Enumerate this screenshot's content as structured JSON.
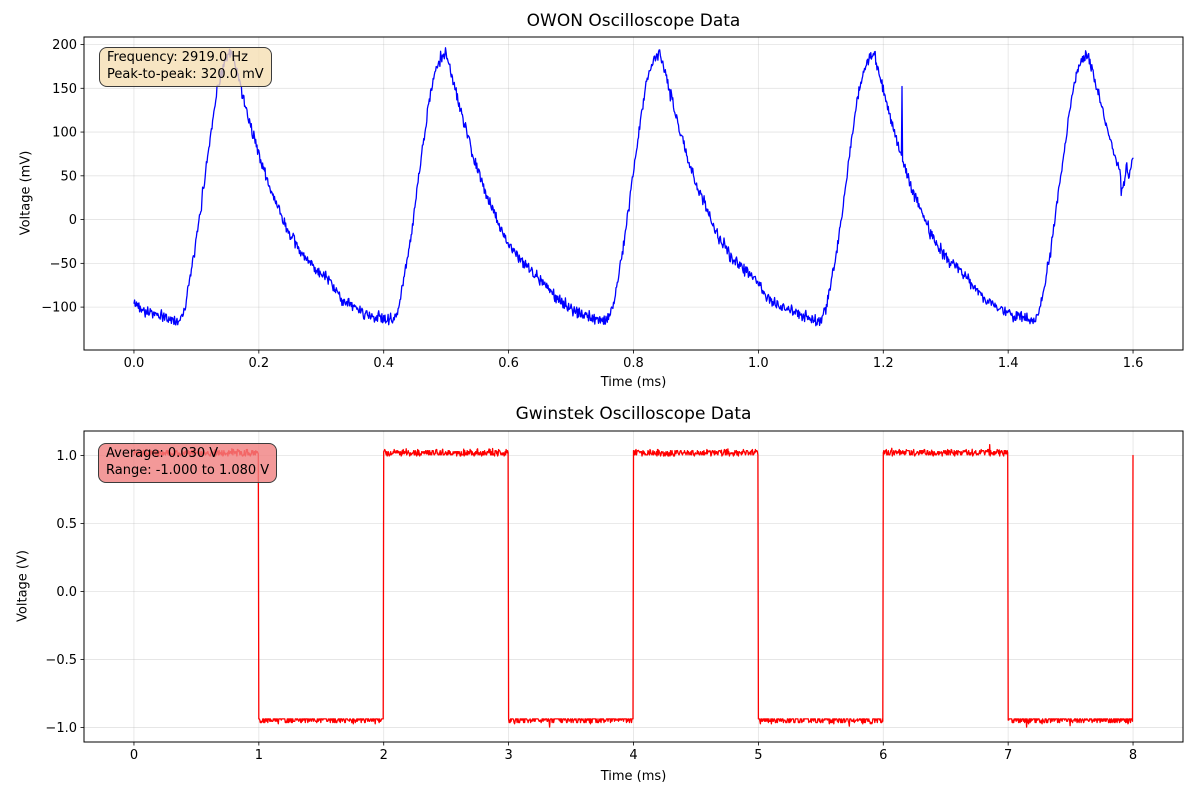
{
  "figure": {
    "background": "#ffffff"
  },
  "chart_data": [
    {
      "name": "owon",
      "type": "line",
      "title": "OWON Oscilloscope Data",
      "xlabel": "Time (ms)",
      "ylabel": "Voltage (mV)",
      "line_color": "#0000ff",
      "grid": {
        "on": true,
        "color": "#b0b0b0",
        "alpha": 0.35
      },
      "xlim": [
        -0.08,
        1.68
      ],
      "ylim": [
        -149,
        208.6
      ],
      "x_ticks": [
        {
          "v": 0.0,
          "label": "0.0"
        },
        {
          "v": 0.2,
          "label": "0.2"
        },
        {
          "v": 0.4,
          "label": "0.4"
        },
        {
          "v": 0.6,
          "label": "0.6"
        },
        {
          "v": 0.8,
          "label": "0.8"
        },
        {
          "v": 1.0,
          "label": "1.0"
        },
        {
          "v": 1.2,
          "label": "1.2"
        },
        {
          "v": 1.4,
          "label": "1.4"
        },
        {
          "v": 1.6,
          "label": "1.6"
        }
      ],
      "y_ticks": [
        {
          "v": 200,
          "label": "200"
        },
        {
          "v": 150,
          "label": "150"
        },
        {
          "v": 100,
          "label": "100"
        },
        {
          "v": 50,
          "label": "50"
        },
        {
          "v": 0,
          "label": "0"
        },
        {
          "v": -50,
          "label": "−50"
        },
        {
          "v": -100,
          "label": "−100"
        }
      ],
      "annotation": {
        "lines": [
          "Frequency: 2919.0 Hz",
          "Peak-to-peak: 320.0 mV"
        ],
        "bg": "#f5deb3",
        "border": "#3b3b3b",
        "alpha": 0.8
      },
      "stats": {
        "frequency_hz": 2919.0,
        "peak_to_peak_mv": 320.0
      },
      "waveform": {
        "kind": "periodic-peaks",
        "period_ms": 0.3426,
        "first_peak_ms": 0.157,
        "t_end_ms": 1.6,
        "n_samples": 1600,
        "peak_mv": 190,
        "trough_mv": -116,
        "noise_mv": 5,
        "cycle_anchors": [
          [
            0,
            190
          ],
          [
            0.035,
            158
          ],
          [
            0.076,
            117
          ],
          [
            0.131,
            70
          ],
          [
            0.18,
            34
          ],
          [
            0.216,
            14
          ],
          [
            0.27,
            -18
          ],
          [
            0.336,
            -43
          ],
          [
            0.4,
            -58
          ],
          [
            0.45,
            -70
          ],
          [
            0.52,
            -92
          ],
          [
            0.6,
            -104
          ],
          [
            0.67,
            -111
          ],
          [
            0.72,
            -114
          ],
          [
            0.755,
            -116
          ],
          [
            0.78,
            -100
          ],
          [
            0.8,
            -72
          ],
          [
            0.825,
            -38
          ],
          [
            0.85,
            5
          ],
          [
            0.875,
            52
          ],
          [
            0.9,
            98
          ],
          [
            0.925,
            140
          ],
          [
            0.95,
            168
          ],
          [
            0.975,
            184
          ],
          [
            1,
            190
          ]
        ],
        "tail_anchors": [
          [
            1.581,
            30
          ],
          [
            1.586,
            46
          ],
          [
            1.59,
            64
          ],
          [
            1.593,
            42
          ],
          [
            1.596,
            58
          ],
          [
            1.6,
            72
          ]
        ],
        "spike": {
          "t_ms": 1.23,
          "v_mv": 152
        }
      }
    },
    {
      "name": "gwinstek",
      "type": "line",
      "title": "Gwinstek Oscilloscope Data",
      "xlabel": "Time (ms)",
      "ylabel": "Voltage (V)",
      "line_color": "#ff0000",
      "grid": {
        "on": true,
        "color": "#b0b0b0",
        "alpha": 0.35
      },
      "xlim": [
        -0.4,
        8.4
      ],
      "ylim": [
        -1.107,
        1.18
      ],
      "x_ticks": [
        {
          "v": 0,
          "label": "0"
        },
        {
          "v": 1,
          "label": "1"
        },
        {
          "v": 2,
          "label": "2"
        },
        {
          "v": 3,
          "label": "3"
        },
        {
          "v": 4,
          "label": "4"
        },
        {
          "v": 5,
          "label": "5"
        },
        {
          "v": 6,
          "label": "6"
        },
        {
          "v": 7,
          "label": "7"
        },
        {
          "v": 8,
          "label": "8"
        }
      ],
      "y_ticks": [
        {
          "v": 1.0,
          "label": "1.0"
        },
        {
          "v": 0.5,
          "label": "0.5"
        },
        {
          "v": 0.0,
          "label": "0.0"
        },
        {
          "v": -0.5,
          "label": "−0.5"
        },
        {
          "v": -1.0,
          "label": "−1.0"
        }
      ],
      "annotation": {
        "lines": [
          "Average: 0.030 V",
          "Range: -1.000 to 1.080 V"
        ],
        "bg": "#f08080",
        "border": "#3b3b3b",
        "alpha": 0.8
      },
      "stats": {
        "average_v": 0.03,
        "range_min_v": -1.0,
        "range_max_v": 1.08
      },
      "waveform": {
        "kind": "square",
        "period_ms": 2,
        "first_half": "high",
        "high_v": 1.02,
        "low_v": -0.945,
        "t_end_ms": 8,
        "n_samples": 2000,
        "max_spike_v": 1.08,
        "min_dip_v": -1.0,
        "spike_t_ms": 6.85,
        "end_value_v": 1.0
      }
    }
  ]
}
